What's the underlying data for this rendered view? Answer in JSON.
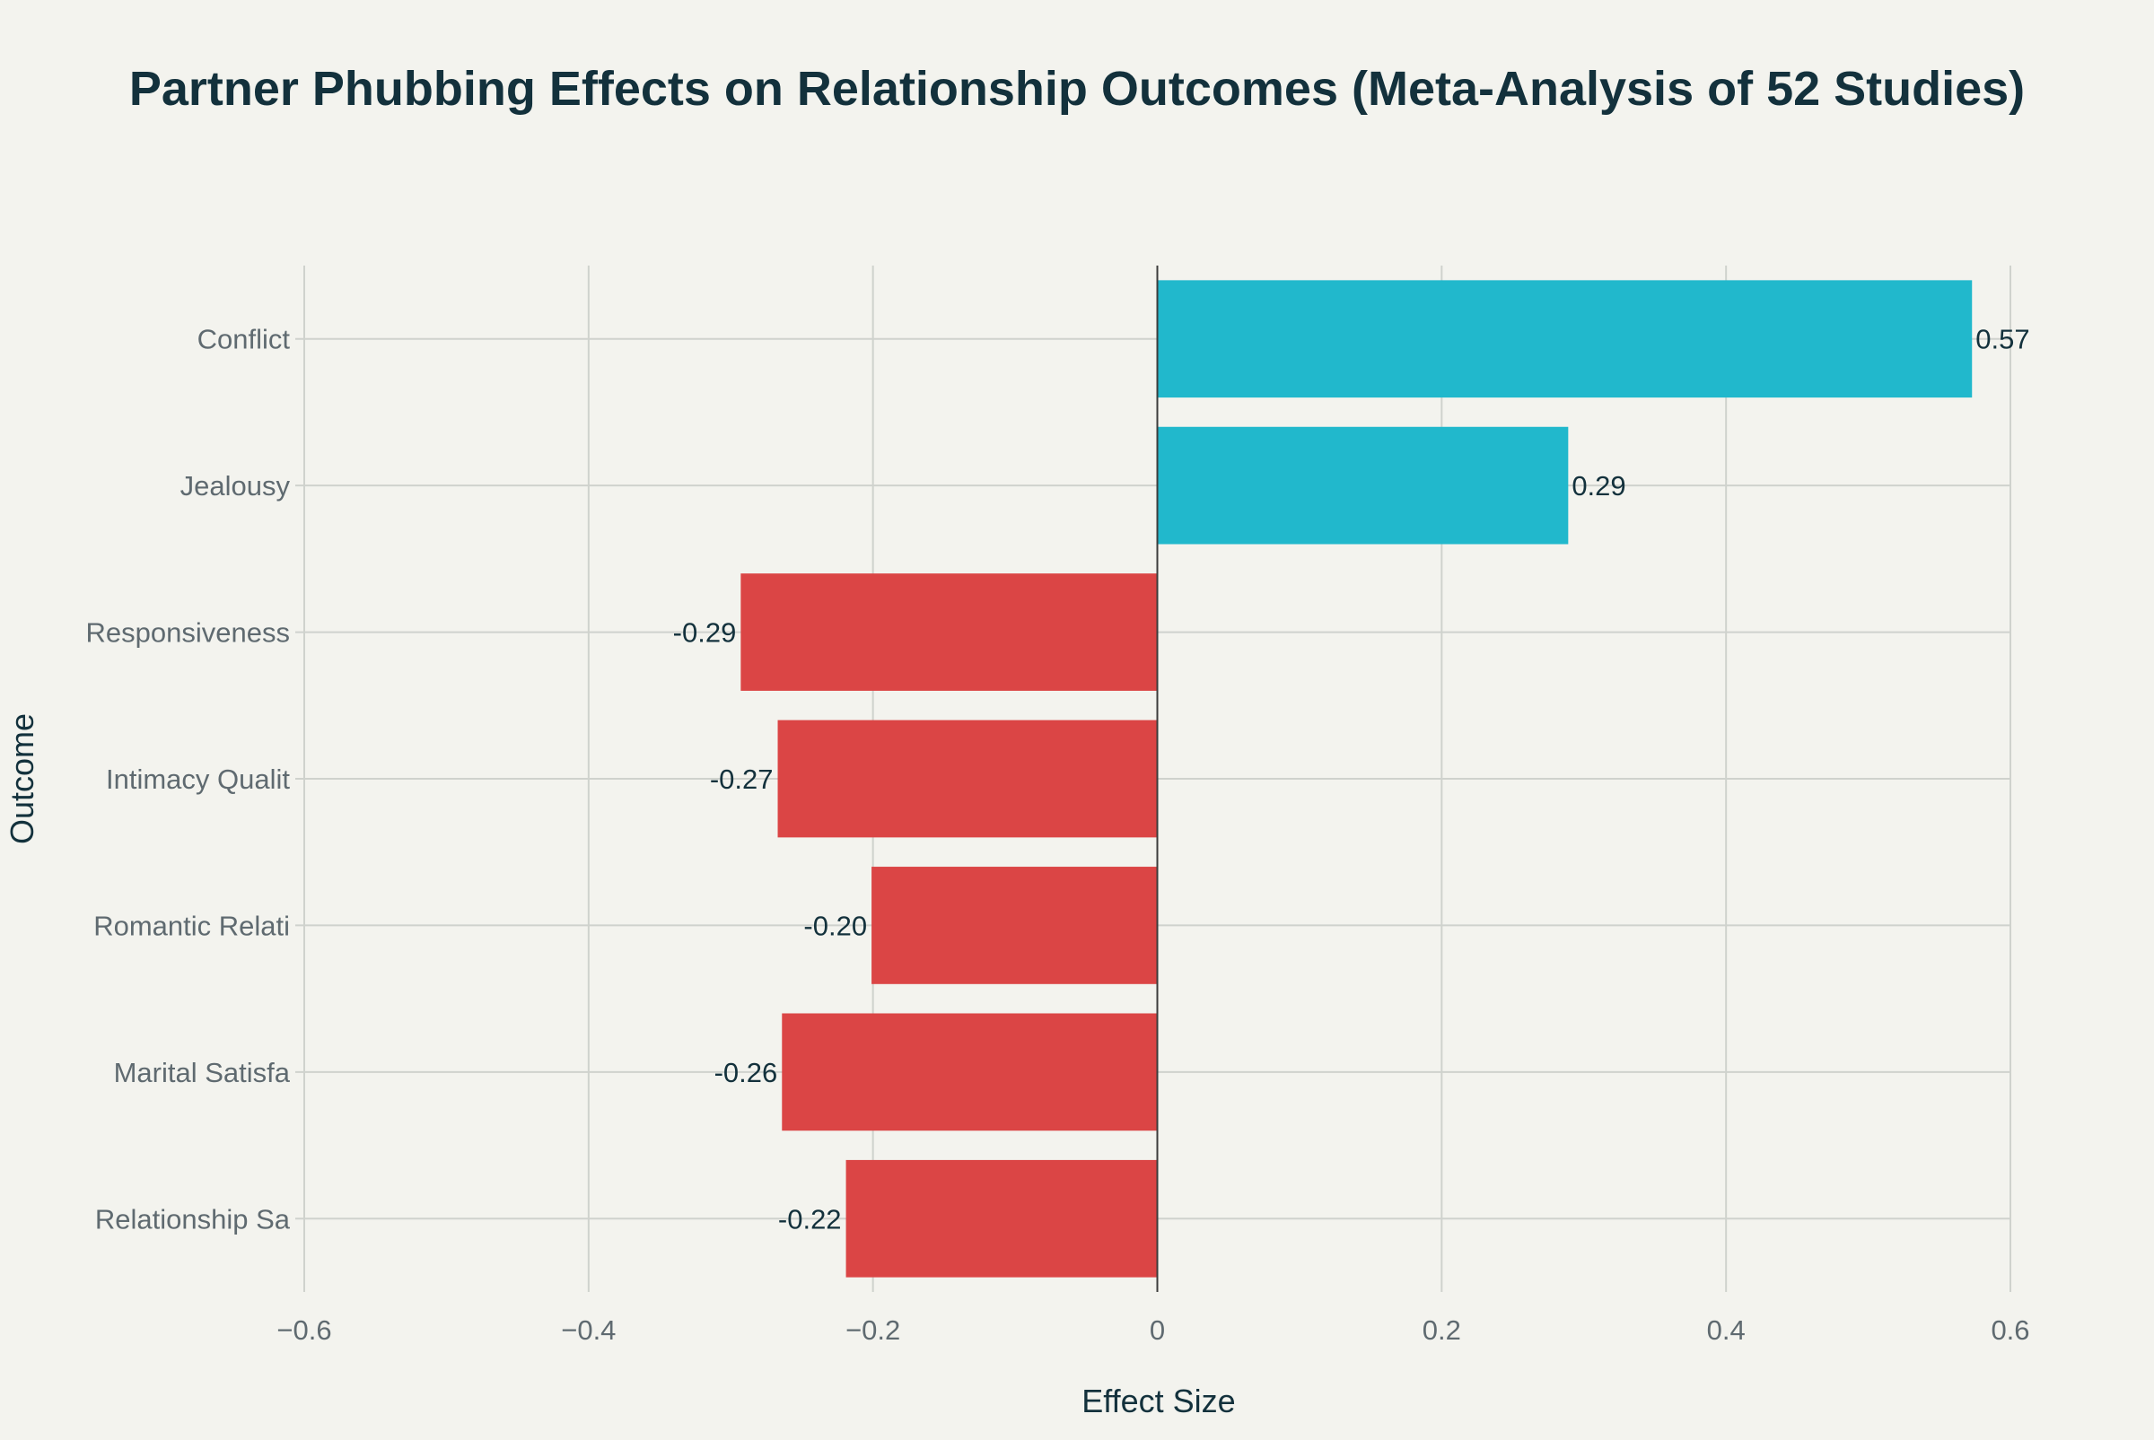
{
  "chart_data": {
    "type": "bar",
    "orientation": "horizontal",
    "title": "Partner Phubbing Effects on Relationship Outcomes (Meta-Analysis of 52 Studies)",
    "xlabel": "Effect Size",
    "ylabel": "Outcome",
    "xlim": [
      -0.6,
      0.6
    ],
    "x_ticks": [
      {
        "value": -0.6,
        "label": "−0.6"
      },
      {
        "value": -0.4,
        "label": "−0.4"
      },
      {
        "value": -0.2,
        "label": "−0.2"
      },
      {
        "value": 0,
        "label": "0"
      },
      {
        "value": 0.2,
        "label": "0.2"
      },
      {
        "value": 0.4,
        "label": "0.4"
      },
      {
        "value": 0.6,
        "label": "0.6"
      }
    ],
    "categories": [
      "Conflict",
      "Jealousy",
      "Responsiveness",
      "Intimacy Qualit",
      "Romantic Relati",
      "Marital Satisfa",
      "Relationship Sa"
    ],
    "values": [
      0.573,
      0.289,
      -0.293,
      -0.267,
      -0.201,
      -0.264,
      -0.219
    ],
    "value_labels": [
      "0.57",
      "0.29",
      "-0.29",
      "-0.27",
      "-0.20",
      "-0.26",
      "-0.22"
    ],
    "positive_color": "#21b8cc",
    "negative_color": "#db4545",
    "grid": true
  }
}
